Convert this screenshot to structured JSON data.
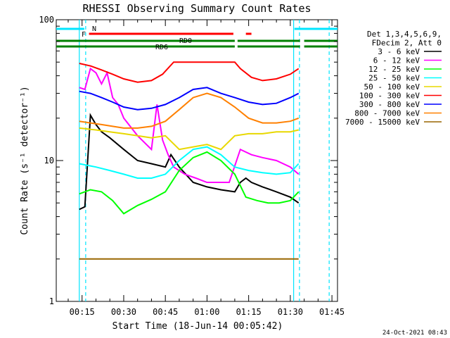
{
  "chart_data": {
    "type": "line",
    "title": "RHESSI Observing Summary Count Rates",
    "xlabel": "Start Time (18-Jun-14 00:05:42)",
    "ylabel": "Count Rate (s⁻¹ detector⁻¹)",
    "yscale": "log",
    "ylim": [
      1,
      100
    ],
    "xlim_min": [
      5.7,
      107
    ],
    "x_ticks": [
      "00:15",
      "00:30",
      "00:45",
      "01:00",
      "01:15",
      "01:30",
      "01:45"
    ],
    "x_tick_min": [
      15,
      30,
      45,
      60,
      75,
      90,
      105
    ],
    "y_ticks": [
      "1",
      "10",
      "100"
    ],
    "y_tick_vals": [
      1,
      10,
      100
    ],
    "legend_header": [
      "Det 1,3,4,5,6,9,",
      "FDecim 2, Att 0"
    ],
    "legend_position": "right",
    "grid": false,
    "series": [
      {
        "name": "3 - 6 keV",
        "color": "#000000",
        "x": [
          14,
          16,
          18,
          20,
          22,
          25,
          30,
          35,
          40,
          45,
          47,
          50,
          55,
          60,
          65,
          70,
          72,
          74,
          76,
          80,
          85,
          90,
          93
        ],
        "values": [
          4.5,
          4.7,
          21,
          18,
          16,
          14.5,
          12,
          10,
          9.5,
          9,
          11,
          9,
          7,
          6.5,
          6.2,
          6,
          7,
          7.5,
          7,
          6.5,
          6,
          5.5,
          5
        ]
      },
      {
        "name": "6 - 12 keV",
        "color": "#ff00ff",
        "x": [
          14,
          16,
          18,
          20,
          22,
          24,
          26,
          28,
          30,
          35,
          40,
          42,
          44,
          46,
          48,
          52,
          56,
          60,
          64,
          68,
          72,
          76,
          80,
          85,
          90,
          93
        ],
        "values": [
          33,
          32,
          45,
          42,
          35,
          42,
          28,
          25,
          20,
          15,
          12,
          25,
          14,
          11,
          9,
          8,
          7.5,
          7,
          7,
          7,
          12,
          11,
          10.5,
          10,
          9,
          8
        ]
      },
      {
        "name": "12 - 25 keV",
        "color": "#00ff00",
        "x": [
          14,
          18,
          22,
          26,
          30,
          35,
          40,
          45,
          50,
          55,
          60,
          65,
          70,
          74,
          78,
          82,
          86,
          90,
          93
        ],
        "values": [
          5.8,
          6.2,
          6.0,
          5.2,
          4.2,
          4.8,
          5.3,
          6.0,
          8.5,
          10.5,
          11.5,
          10.0,
          8.0,
          5.5,
          5.2,
          5.0,
          5.0,
          5.2,
          6.0
        ]
      },
      {
        "name": "25 - 50 keV",
        "color": "#00ffff",
        "x": [
          14,
          20,
          25,
          30,
          35,
          40,
          45,
          50,
          55,
          60,
          65,
          70,
          75,
          80,
          85,
          90,
          93
        ],
        "values": [
          9.5,
          9.0,
          8.5,
          8.0,
          7.5,
          7.5,
          8.0,
          10,
          12,
          12.5,
          11,
          9,
          8.5,
          8.2,
          8.0,
          8.2,
          9.5
        ]
      },
      {
        "name": "50 - 100 keV",
        "color": "#e8d800",
        "x": [
          14,
          20,
          25,
          30,
          35,
          40,
          45,
          50,
          55,
          60,
          65,
          70,
          75,
          80,
          85,
          90,
          93
        ],
        "values": [
          17,
          16.5,
          16,
          15.5,
          15,
          14.5,
          15,
          12,
          12.5,
          13,
          12,
          15,
          15.5,
          15.5,
          16,
          16,
          16.5
        ]
      },
      {
        "name": "100 - 300 keV",
        "color": "#ff0000",
        "x": [
          14,
          18,
          22,
          26,
          30,
          35,
          40,
          44,
          48,
          70,
          72,
          76,
          80,
          85,
          90,
          93
        ],
        "values": [
          49,
          47,
          44,
          41,
          38,
          36,
          37,
          41,
          50,
          50,
          45,
          39,
          37,
          38,
          41,
          45
        ]
      },
      {
        "name": "300 - 800 keV",
        "color": "#0000ff",
        "x": [
          14,
          18,
          22,
          26,
          30,
          35,
          40,
          45,
          50,
          55,
          60,
          65,
          70,
          75,
          80,
          85,
          90,
          93
        ],
        "values": [
          31,
          30,
          28,
          26,
          24,
          23,
          23.5,
          25,
          28,
          32,
          33,
          30,
          28,
          26,
          25,
          25.5,
          28,
          30
        ]
      },
      {
        "name": "800 - 7000 keV",
        "color": "#ff8000",
        "x": [
          14,
          18,
          22,
          26,
          30,
          35,
          40,
          45,
          50,
          55,
          60,
          65,
          70,
          75,
          80,
          85,
          90,
          93
        ],
        "values": [
          19,
          18.5,
          18,
          17.5,
          17,
          17,
          17.5,
          19,
          23,
          28,
          30,
          28,
          24,
          20,
          18.5,
          18.5,
          19,
          20
        ]
      },
      {
        "name": "7000 - 15000 keV",
        "color": "#996600",
        "x": [
          14,
          93
        ],
        "values": [
          2,
          2
        ]
      }
    ],
    "flag_bars": [
      {
        "label": "N",
        "color": "#00e5ff",
        "segments": [
          [
            5.7,
            15.8
          ],
          [
            91.5,
            107
          ]
        ]
      },
      {
        "label": "F",
        "color": "#ff0000",
        "segments": [
          [
            17.5,
            69.5
          ],
          [
            74,
            76
          ]
        ]
      },
      {
        "label": "RD0",
        "color": "#008000",
        "segments": [
          [
            5.7,
            70
          ],
          [
            71,
            93.5
          ],
          [
            95,
            107
          ]
        ]
      },
      {
        "label": "RD6",
        "color": "#008000",
        "segments": [
          [
            5.7,
            70
          ],
          [
            71,
            93.5
          ],
          [
            95,
            107
          ]
        ]
      }
    ],
    "vertical_markers": [
      {
        "min": 14.0,
        "color": "#00e5ff",
        "style": "solid"
      },
      {
        "min": 16.3,
        "color": "#00e5ff",
        "style": "dashed"
      },
      {
        "min": 91.2,
        "color": "#00e5ff",
        "style": "solid"
      },
      {
        "min": 93.3,
        "color": "#00e5ff",
        "style": "dashed"
      },
      {
        "min": 104.0,
        "color": "#00e5ff",
        "style": "dashed"
      }
    ],
    "timestamp": "24-Oct-2021 08:43"
  }
}
